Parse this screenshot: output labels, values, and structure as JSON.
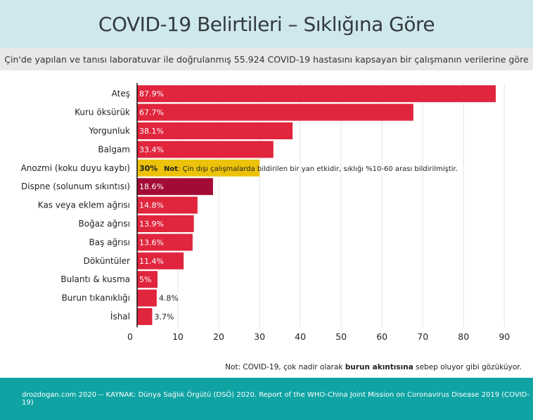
{
  "header": {
    "title": "COVID-19 Belirtileri – Sıklığına Göre",
    "subtitle": "Çin'de yapılan ve tanısı laboratuvar ile doğrulanmış 55.924 COVID-19 hastasını kapsayan bir çalışmanın verilerine göre"
  },
  "chart_data": {
    "type": "bar",
    "orientation": "horizontal",
    "categories": [
      "Ateş",
      "Kuru öksürük",
      "Yorgunluk",
      "Balgam",
      "Anozmi (koku duyu kaybı)",
      "Dispne (solunum sıkıntısı)",
      "Kas veya eklem ağrısı",
      "Boğaz ağrısı",
      "Baş ağrısı",
      "Döküntüler",
      "Bulantı & kusma",
      "Burun tıkanıklığı",
      "İshal"
    ],
    "values": [
      87.9,
      67.7,
      38.1,
      33.4,
      30,
      18.6,
      14.8,
      13.9,
      13.6,
      11.4,
      5,
      4.8,
      3.7
    ],
    "value_labels": [
      "87.9%",
      "67.7%",
      "38.1%",
      "33.4%",
      "30%",
      "18.6%",
      "14.8%",
      "13.9%",
      "13.6%",
      "11.4%",
      "5%",
      "4.8%",
      "3.7%"
    ],
    "colors": [
      "#e0253d",
      "#e0253d",
      "#e0253d",
      "#e0253d",
      "#ecc20a",
      "#a30a34",
      "#e0253d",
      "#e0253d",
      "#e0253d",
      "#e0253d",
      "#e0253d",
      "#e0253d",
      "#e0253d"
    ],
    "label_inside": [
      true,
      true,
      true,
      true,
      true,
      true,
      true,
      true,
      true,
      true,
      true,
      false,
      false
    ],
    "xlim": [
      0,
      90
    ],
    "xticks": [
      0,
      10,
      20,
      30,
      40,
      50,
      60,
      70,
      80,
      90
    ],
    "grid": true,
    "annotation": {
      "category_index": 4,
      "bold": "Not",
      "text": ": Çin dışı çalışmalarda bildirilen bir yan etkidir, sıklığı %10-60 arası bildirilmiştir."
    }
  },
  "note": {
    "prefix": "Not: COVID-19, çok nadir olarak ",
    "bold": "burun akıntısına",
    "suffix": " sebep oluyor gibi gözüküyor."
  },
  "footer": {
    "text": "drozdogan.com 2020 -- KAYNAK: Dünya Sağlık Örgütü (DSÖ) 2020. Report of the WHO-China Joint Mission on Coronavirus Disease 2019 (COVID-19)"
  }
}
